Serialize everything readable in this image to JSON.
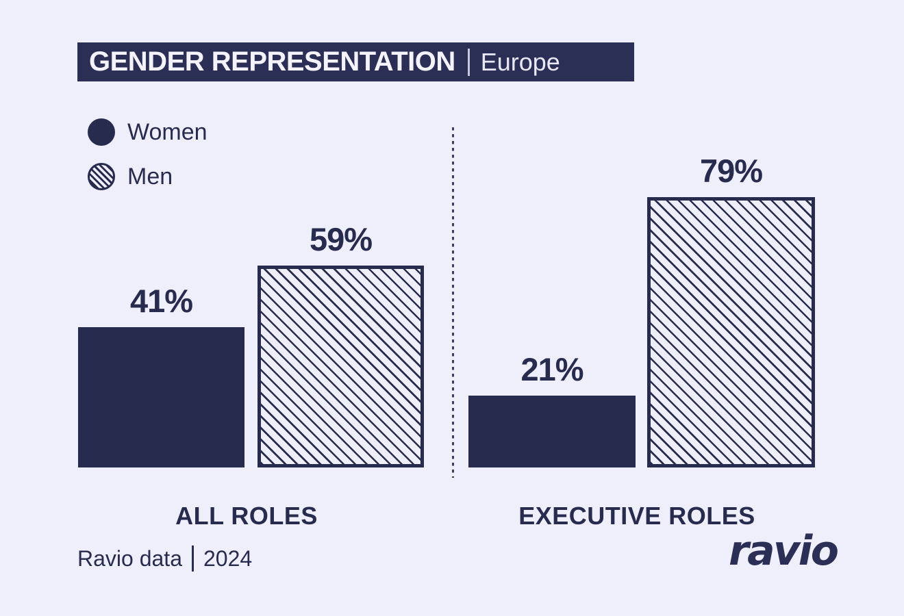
{
  "header": {
    "title": "GENDER REPRESENTATION",
    "region": "Europe"
  },
  "chart_data": {
    "type": "bar",
    "title": "GENDER REPRESENTATION",
    "subtitle": "Europe",
    "categories": [
      "ALL ROLES",
      "EXECUTIVE ROLES"
    ],
    "series": [
      {
        "name": "Women",
        "pattern": "solid",
        "values": [
          41,
          21
        ],
        "labels": [
          "41%",
          "21%"
        ]
      },
      {
        "name": "Men",
        "pattern": "diagonal-hatch",
        "values": [
          59,
          79
        ],
        "labels": [
          "59%",
          "79%"
        ]
      }
    ],
    "unit": "percent",
    "ylim": [
      0,
      100
    ],
    "grid": false,
    "axes_shown": false,
    "legend_position": "top-left",
    "colors": {
      "navy": "#272b4e",
      "title_banner": "#2b2f55",
      "background": "#efeefb"
    }
  },
  "footer": {
    "source": "Ravio data",
    "year": "2024",
    "logo": "ravio"
  }
}
